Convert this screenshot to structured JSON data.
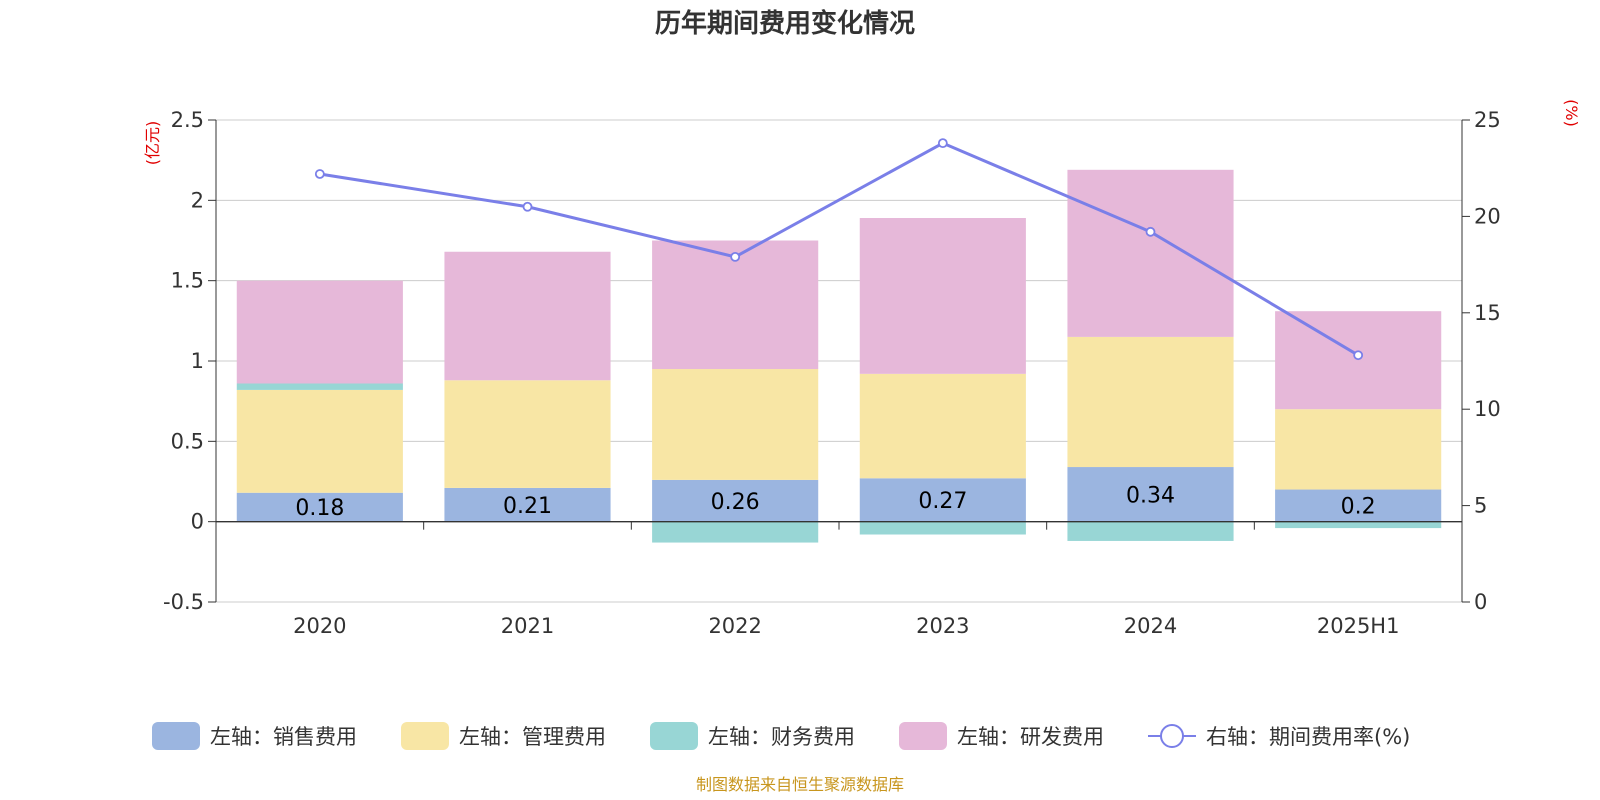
{
  "chart_data": {
    "type": "bar",
    "title": "历年期间费用变化情况",
    "categories": [
      "2020",
      "2021",
      "2022",
      "2023",
      "2024",
      "2025H1"
    ],
    "left_axis": {
      "unit": "(亿元)",
      "ylim": [
        -0.5,
        2.5
      ],
      "ticks": [
        "2.5",
        "2",
        "1.5",
        "1",
        "0.5",
        "0",
        "-0.5"
      ]
    },
    "right_axis": {
      "unit": "(%)",
      "ylim": [
        0,
        25
      ],
      "ticks": [
        "25",
        "20",
        "15",
        "10",
        "5",
        "0"
      ]
    },
    "series": [
      {
        "name": "左轴：销售费用",
        "type": "bar",
        "stack": "left",
        "color": "#9bb5e0",
        "values": [
          0.18,
          0.21,
          0.26,
          0.27,
          0.34,
          0.2
        ],
        "labels": [
          "0.18",
          "0.21",
          "0.26",
          "0.27",
          "0.34",
          "0.2"
        ]
      },
      {
        "name": "左轴：管理费用",
        "type": "bar",
        "stack": "left",
        "color": "#f8e6a5",
        "values": [
          0.64,
          0.67,
          0.69,
          0.65,
          0.81,
          0.5
        ]
      },
      {
        "name": "左轴：财务费用",
        "type": "bar",
        "stack": "left",
        "color": "#98d6d5",
        "values": [
          0.04,
          0.0,
          -0.13,
          -0.08,
          -0.12,
          -0.04
        ]
      },
      {
        "name": "左轴：研发费用",
        "type": "bar",
        "stack": "left",
        "color": "#e6b8d9",
        "values": [
          0.64,
          0.8,
          0.8,
          0.97,
          1.04,
          0.61
        ]
      },
      {
        "name": "右轴：期间费用率(%)",
        "type": "line",
        "axis": "right",
        "color": "#7a7fe8",
        "values": [
          22.2,
          20.5,
          17.9,
          23.8,
          19.2,
          12.8
        ]
      }
    ],
    "legend_position": "bottom",
    "grid": true
  },
  "source_note": "制图数据来自恒生聚源数据库"
}
